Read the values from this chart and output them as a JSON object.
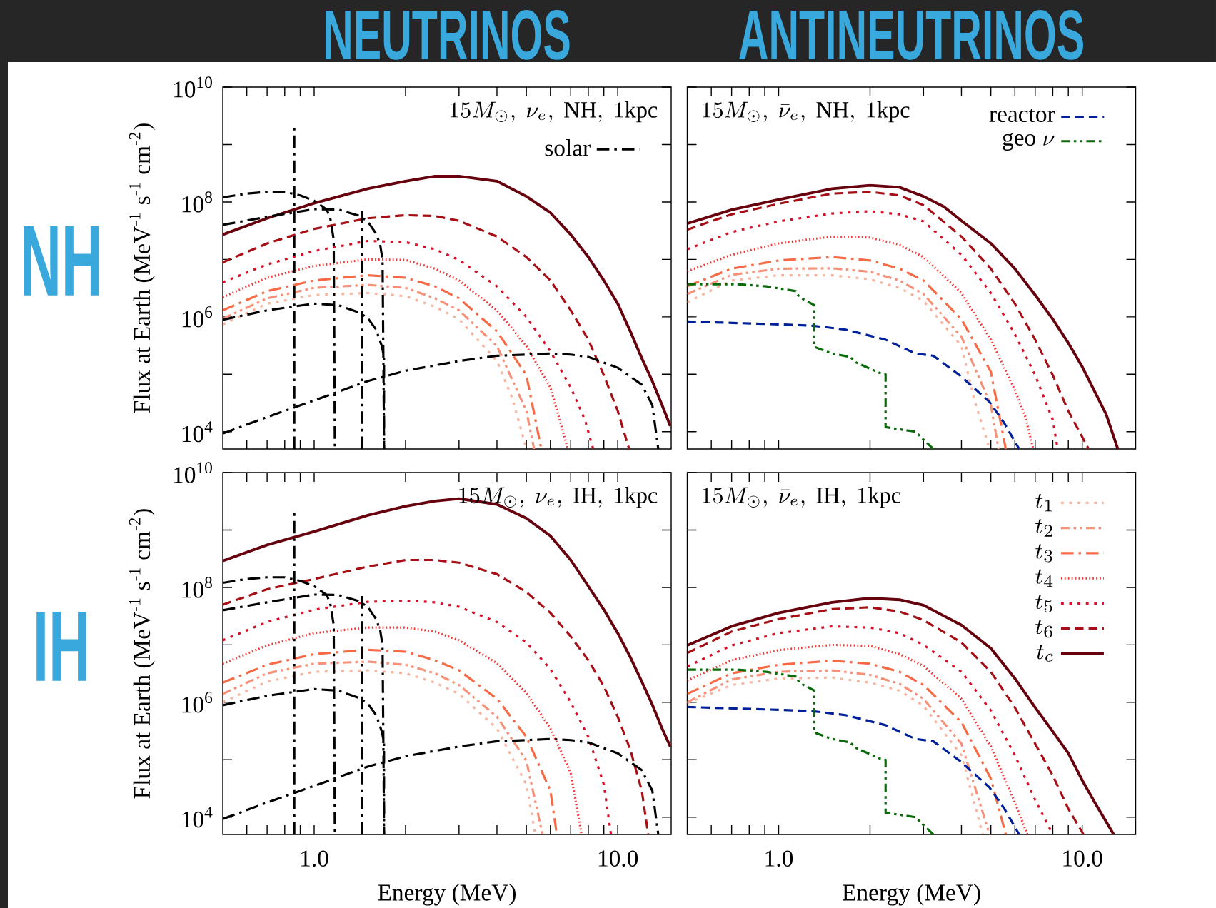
{
  "chart_data": [
    {
      "type": "line",
      "title": "NEUTRINOS",
      "subtitle": "15M_\\odot,\\ \\nu_e,\\ \\mathrm{NH},\\ 1\\mathrm{kpc}",
      "ylabel": "Flux at Earth (MeV$^{-1}$ s$^{-1}$ cm$^{-2}$)",
      "annotations": [
        "NH"
      ],
      "log": "xy",
      "legend": "top right",
      "tick_labels": "y",
      "xlim": [
        0.5,
        15
      ],
      "ylim": [
        5000.0,
        10000000000.0
      ],
      "xticks": [
        {
          "value": 0.6,
          "label": null
        },
        {
          "value": 0.7,
          "label": null
        },
        {
          "value": 0.8,
          "label": null
        },
        {
          "value": 0.9,
          "label": null
        },
        {
          "value": 1,
          "label": null
        },
        {
          "value": 2,
          "label": null
        },
        {
          "value": 3,
          "label": null
        },
        {
          "value": 4,
          "label": null
        },
        {
          "value": 5,
          "label": null
        },
        {
          "value": 6,
          "label": null
        },
        {
          "value": 7,
          "label": null
        },
        {
          "value": 8,
          "label": null
        },
        {
          "value": 9,
          "label": null
        },
        {
          "value": 10,
          "label": null
        }
      ],
      "yticks": [
        {
          "value": 10000.0,
          "label": "10$^{4}$"
        },
        {
          "value": 100000.0,
          "label": null
        },
        {
          "value": 1000000.0,
          "label": "10$^{6}$"
        },
        {
          "value": 10000000.0,
          "label": null
        },
        {
          "value": 100000000.0,
          "label": "10$^{8}$"
        },
        {
          "value": 1000000000.0,
          "label": null
        },
        {
          "value": 10000000000.0,
          "label": "10$^{10}$"
        }
      ],
      "series": [
        {
          "color": "#f7b49e",
          "line_style": "dotted",
          "x": [
            0.5,
            0.7,
            1,
            1.5,
            2,
            2.5,
            3,
            4,
            4.5,
            5.0
          ],
          "values": [
            740000.0,
            1700000.0,
            2400000.0,
            2600000.0,
            2300000.0,
            1500000.0,
            910000.0,
            170000.0,
            37000.0,
            5000.0
          ]
        },
        {
          "color": "#f8917a",
          "line_style": "dashdotdot",
          "x": [
            0.5,
            0.7,
            1,
            1.5,
            2,
            2.5,
            3,
            4,
            5,
            5.3
          ],
          "values": [
            930000.0,
            2100000.0,
            3200000.0,
            3600000.0,
            3200000.0,
            2100000.0,
            1300000.0,
            310000.0,
            23000.0,
            5000.0
          ]
        },
        {
          "color": "#f76a45",
          "line_style": "dashdot",
          "x": [
            0.5,
            0.7,
            1,
            1.5,
            2,
            2.5,
            3,
            4,
            5,
            5.6
          ],
          "values": [
            1300000.0,
            2800000.0,
            4300000.0,
            5300000.0,
            4800000.0,
            3400000.0,
            2100000.0,
            560000.0,
            96000.0,
            5000.0
          ]
        },
        {
          "color": "#f23a3a",
          "line_style": "densely dotted",
          "x": [
            0.5,
            0.7,
            1,
            1.5,
            2,
            2.5,
            3,
            4,
            5,
            6,
            6.85
          ],
          "values": [
            2200000.0,
            4800000.0,
            7700000.0,
            10000000.0,
            9800000.0,
            6900000.0,
            4300000.0,
            1300000.0,
            310000.0,
            59000.0,
            5000.0
          ]
        },
        {
          "color": "#d7102a",
          "line_style": "dotted",
          "x": [
            0.5,
            0.7,
            1,
            1.5,
            2,
            2.5,
            3,
            4,
            5,
            6,
            7,
            7.8,
            8.3
          ],
          "values": [
            4000000.0,
            8200000.0,
            14000000.0,
            21000000.0,
            20000000.0,
            15000000.0,
            9800000.0,
            3400000.0,
            1000000.0,
            250000.0,
            59000.0,
            16000.0,
            5000.0
          ]
        },
        {
          "color": "#a50f15",
          "line_style": "dashed",
          "x": [
            0.5,
            0.7,
            1,
            1.5,
            2,
            2.5,
            3,
            4,
            5,
            6,
            7,
            8,
            9,
            10,
            10.9
          ],
          "values": [
            8900000.0,
            19000000.0,
            34000000.0,
            52000000.0,
            59000000.0,
            57000000.0,
            47000000.0,
            25000000.0,
            11000000.0,
            4300000.0,
            1300000.0,
            400000.0,
            96000.0,
            23000.0,
            5000.0
          ]
        },
        {
          "color": "#67000d",
          "line_style": "solid",
          "x": [
            0.5,
            0.7,
            1,
            1.5,
            2,
            2.5,
            3,
            4,
            5,
            6,
            7,
            8,
            9,
            10,
            11,
            12,
            13,
            14,
            14.9
          ],
          "values": [
            27000000.0,
            52000000.0,
            95000000.0,
            170000000.0,
            230000000.0,
            280000000.0,
            280000000.0,
            230000000.0,
            125000000.0,
            65000000.0,
            27000000.0,
            11000000.0,
            4300000.0,
            1700000.0,
            560000.0,
            190000.0,
            76000.0,
            29000.0,
            12600.0
          ]
        },
        {
          "name": "\\mathrm{solar}",
          "color": "#000000",
          "line_style": "dashdot",
          "x": [
            0.5,
            0.6,
            0.7,
            0.8,
            0.9,
            1.0,
            1.1,
            1.13,
            1.16,
            1.17
          ],
          "values": [
            120000000.0,
            140000000.0,
            150000000.0,
            150000000.0,
            130000000.0,
            105000000.0,
            74000000.0,
            52000000.0,
            22000000.0,
            5000.0
          ]
        },
        {
          "color": "#000000",
          "line_style": "dashdot",
          "x": [
            0.5,
            0.7,
            1.0,
            1.2,
            1.4,
            1.5,
            1.6,
            1.65,
            1.68,
            1.7
          ],
          "values": [
            40000000.0,
            55000000.0,
            75000000.0,
            74000000.0,
            58000000.0,
            46000000.0,
            28000000.0,
            18000000.0,
            9800000.0,
            5000.0
          ]
        },
        {
          "color": "#000000",
          "line_style": "dashdot",
          "x": [
            0.5,
            0.7,
            1.0,
            1.2,
            1.4,
            1.5,
            1.6,
            1.67,
            1.7,
            1.7
          ],
          "values": [
            890000.0,
            1300000.0,
            1700000.0,
            1600000.0,
            1200000.0,
            960000.0,
            600000.0,
            310000.0,
            200000.0,
            5000.0
          ]
        },
        {
          "color": "#000000",
          "line_style": "dashdot",
          "x": [
            0.5,
            0.7,
            1.0,
            1.5,
            2,
            3,
            4,
            5,
            6,
            7,
            8,
            10,
            12,
            13,
            13.6
          ],
          "values": [
            9300.0,
            18000.0,
            35000.0,
            76000.0,
            115000.0,
            170000.0,
            210000.0,
            220000.0,
            230000.0,
            220000.0,
            200000.0,
            130000.0,
            66000.0,
            29000.0,
            5000.0
          ]
        },
        {
          "color": "#000000",
          "line_style": "dashdot",
          "x": [
            0.86,
            0.86
          ],
          "values": [
            5000.0,
            2100000000.0
          ]
        },
        {
          "color": "#000000",
          "line_style": "dashdot",
          "x": [
            1.44,
            1.44
          ],
          "values": [
            5000.0,
            75000000.0
          ]
        }
      ]
    },
    {
      "type": "line",
      "title": "ANTINEUTRINOS",
      "subtitle": "15M_\\odot,\\ \\bar{\\nu}_e,\\ \\mathrm{NH},\\ 1\\mathrm{kpc}",
      "log": "xy",
      "legend": "top right",
      "tick_labels": false,
      "xlim": [
        0.5,
        15
      ],
      "ylim": [
        5000.0,
        10000000000.0
      ],
      "xticks": [
        {
          "value": 0.6,
          "label": null
        },
        {
          "value": 0.7,
          "label": null
        },
        {
          "value": 0.8,
          "label": null
        },
        {
          "value": 0.9,
          "label": null
        },
        {
          "value": 1,
          "label": null
        },
        {
          "value": 2,
          "label": null
        },
        {
          "value": 3,
          "label": null
        },
        {
          "value": 4,
          "label": null
        },
        {
          "value": 5,
          "label": null
        },
        {
          "value": 6,
          "label": null
        },
        {
          "value": 7,
          "label": null
        },
        {
          "value": 8,
          "label": null
        },
        {
          "value": 9,
          "label": null
        },
        {
          "value": 10,
          "label": null
        }
      ],
      "yticks": [
        {
          "value": 10000.0,
          "label": null
        },
        {
          "value": 100000.0,
          "label": null
        },
        {
          "value": 1000000.0,
          "label": null
        },
        {
          "value": 10000000.0,
          "label": null
        },
        {
          "value": 100000000.0,
          "label": null
        },
        {
          "value": 1000000000.0,
          "label": null
        },
        {
          "value": 10000000000.0,
          "label": null
        }
      ],
      "series": [
        {
          "color": "#f7b49e",
          "line_style": "dotted",
          "x": [
            0.5,
            0.7,
            1,
            1.5,
            2,
            2.5,
            3,
            4,
            4.4,
            4.95
          ],
          "values": [
            1800000.0,
            4300000.0,
            5300000.0,
            5300000.0,
            4500000.0,
            3200000.0,
            1900000.0,
            310000.0,
            37000.0,
            5000.0
          ]
        },
        {
          "color": "#f8917a",
          "line_style": "dashdotdot",
          "x": [
            0.5,
            0.7,
            1,
            1.5,
            2,
            2.5,
            3,
            4,
            5,
            5.3
          ],
          "values": [
            2500000.0,
            5400000.0,
            6900000.0,
            7000000.0,
            6100000.0,
            4300000.0,
            2500000.0,
            450000.0,
            29000.0,
            5000.0
          ]
        },
        {
          "color": "#f76a45",
          "line_style": "dashdot",
          "x": [
            0.5,
            0.7,
            1,
            1.5,
            2,
            2.5,
            3,
            4,
            5,
            5.6
          ],
          "values": [
            3400000.0,
            6900000.0,
            9600000.0,
            11000000.0,
            9600000.0,
            6900000.0,
            4300000.0,
            910000.0,
            110000.0,
            5000.0
          ]
        },
        {
          "color": "#f23a3a",
          "line_style": "densely dotted",
          "x": [
            0.5,
            0.7,
            1,
            1.5,
            2,
            2.5,
            3,
            4,
            5,
            6,
            6.5,
            6.9
          ],
          "values": [
            6200000.0,
            12000000.0,
            19000000.0,
            25000000.0,
            24000000.0,
            18000000.0,
            11000000.0,
            2600000.0,
            400000.0,
            53000.0,
            18000.0,
            5000.0
          ]
        },
        {
          "color": "#d7102a",
          "line_style": "dotted",
          "x": [
            0.5,
            0.7,
            1,
            1.5,
            2,
            2.5,
            3,
            4,
            5,
            6,
            7,
            8,
            8.3
          ],
          "values": [
            15000000.0,
            30000000.0,
            46000000.0,
            63000000.0,
            69000000.0,
            61000000.0,
            46000000.0,
            12000000.0,
            2600000.0,
            500000.0,
            96000.0,
            16000.0,
            5000.0
          ]
        },
        {
          "color": "#a50f15",
          "line_style": "dashed",
          "x": [
            0.5,
            0.7,
            1,
            1.5,
            2,
            2.5,
            3,
            4,
            5,
            6,
            7,
            8,
            9,
            10.5
          ],
          "values": [
            33000000.0,
            61000000.0,
            93000000.0,
            140000000.0,
            150000000.0,
            130000000.0,
            88000000.0,
            25000000.0,
            6900000.0,
            1700000.0,
            400000.0,
            96000.0,
            23000.0,
            5000.0
          ]
        },
        {
          "color": "#67000d",
          "line_style": "solid",
          "x": [
            0.5,
            0.7,
            1,
            1.5,
            2,
            2.5,
            3,
            3.5,
            4,
            5,
            6,
            7,
            8,
            9,
            10,
            12,
            13.1
          ],
          "values": [
            42000000.0,
            73000000.0,
            110000000.0,
            170000000.0,
            195000000.0,
            180000000.0,
            125000000.0,
            83000000.0,
            47000000.0,
            19000000.0,
            6900000.0,
            2400000.0,
            910000.0,
            350000.0,
            135000.0,
            20000.0,
            5000.0
          ]
        },
        {
          "name": "\\mathrm{reactor}",
          "color": "#00209a",
          "line_style": "dashed",
          "x": [
            0.5,
            1.0,
            1.3,
            1.66,
            2.25,
            2.82,
            3.23,
            3.95,
            4.95,
            5.54,
            6.2
          ],
          "values": [
            830000.0,
            740000.0,
            700000.0,
            600000.0,
            400000.0,
            230000.0,
            210000.0,
            96000.0,
            33000.0,
            14000.0,
            5000.0
          ]
        },
        {
          "name": "\\mathrm{geo}\\ \\nu",
          "color": "#0a6a0a",
          "line_style": "dashdotdot",
          "x": [
            0.5,
            0.61,
            0.73,
            0.91,
            1.14,
            1.17,
            1.31,
            1.31,
            1.5,
            1.72,
            1.8,
            2.2,
            2.25,
            2.25,
            2.82,
            3.23
          ],
          "values": [
            3700000.0,
            3700000.0,
            3700000.0,
            3400000.0,
            2800000.0,
            2200000.0,
            1600000.0,
            300000.0,
            230000.0,
            200000.0,
            160000.0,
            100000.0,
            100000.0,
            12000.0,
            10000.0,
            5000.0
          ]
        }
      ]
    },
    {
      "type": "line",
      "subtitle": "15M_\\odot,\\ \\nu_e,\\ \\mathrm{IH},\\ 1\\mathrm{kpc}",
      "xlabel": "Energy (MeV)",
      "ylabel": "Flux at Earth (MeV$^{-1}$ s$^{-1}$ cm$^{-2}$)",
      "annotations": [
        "IH"
      ],
      "log": "xy",
      "xlim": [
        0.5,
        15
      ],
      "ylim": [
        5000.0,
        10000000000.0
      ],
      "xticks": [
        {
          "value": 0.6,
          "label": null
        },
        {
          "value": 0.7,
          "label": null
        },
        {
          "value": 0.8,
          "label": null
        },
        {
          "value": 0.9,
          "label": null
        },
        {
          "value": 1,
          "label": "1.0"
        },
        {
          "value": 2,
          "label": null
        },
        {
          "value": 3,
          "label": null
        },
        {
          "value": 4,
          "label": null
        },
        {
          "value": 5,
          "label": null
        },
        {
          "value": 6,
          "label": null
        },
        {
          "value": 7,
          "label": null
        },
        {
          "value": 8,
          "label": null
        },
        {
          "value": 9,
          "label": null
        },
        {
          "value": 10,
          "label": "10.0"
        }
      ],
      "yticks": [
        {
          "value": 10000.0,
          "label": "10$^{4}$"
        },
        {
          "value": 100000.0,
          "label": null
        },
        {
          "value": 1000000.0,
          "label": "10$^{6}$"
        },
        {
          "value": 10000000.0,
          "label": null
        },
        {
          "value": 100000000.0,
          "label": "10$^{8}$"
        },
        {
          "value": 1000000000.0,
          "label": null
        },
        {
          "value": 10000000000.0,
          "label": "10$^{10}$"
        }
      ],
      "series": [
        {
          "color": "#f7b49e",
          "line_style": "dotted",
          "x": [
            0.5,
            0.7,
            1,
            1.5,
            2,
            2.5,
            3,
            4,
            5,
            5.35
          ],
          "values": [
            1000000.0,
            2300000.0,
            3400000.0,
            3600000.0,
            3200000.0,
            2200000.0,
            1400000.0,
            350000.0,
            37000.0,
            5000.0
          ]
        },
        {
          "color": "#f8917a",
          "line_style": "dashdotdot",
          "x": [
            0.5,
            0.7,
            1,
            1.5,
            2,
            2.5,
            3,
            4,
            5,
            5.65
          ],
          "values": [
            1400000.0,
            3200000.0,
            4700000.0,
            5100000.0,
            4500000.0,
            3200000.0,
            2000000.0,
            560000.0,
            96000.0,
            5000.0
          ]
        },
        {
          "color": "#f76a45",
          "line_style": "dashdot",
          "x": [
            0.5,
            0.7,
            1,
            1.5,
            2,
            2.5,
            3,
            4,
            5,
            6,
            6.3
          ],
          "values": [
            2200000.0,
            4500000.0,
            6900000.0,
            8200000.0,
            7600000.0,
            5400000.0,
            3600000.0,
            1150000.0,
            250000.0,
            29000.0,
            5000.0
          ]
        },
        {
          "color": "#f23a3a",
          "line_style": "densely dotted",
          "x": [
            0.5,
            0.7,
            1,
            1.5,
            2,
            2.5,
            3,
            4,
            5,
            6,
            7,
            7.6
          ],
          "values": [
            4700000.0,
            9800000.0,
            16000000.0,
            20000000.0,
            20000000.0,
            17000000.0,
            12000000.0,
            4800000.0,
            1450000.0,
            350000.0,
            59000.0,
            5000.0
          ]
        },
        {
          "color": "#d7102a",
          "line_style": "dotted",
          "x": [
            0.5,
            0.7,
            1,
            1.5,
            2,
            2.5,
            3,
            4,
            5,
            6,
            7,
            8,
            9,
            9.5
          ],
          "values": [
            12000000.0,
            25000000.0,
            41000000.0,
            56000000.0,
            59000000.0,
            55000000.0,
            46000000.0,
            25000000.0,
            11000000.0,
            3800000.0,
            1000000.0,
            250000.0,
            37000.0,
            5000.0
          ]
        },
        {
          "color": "#a50f15",
          "line_style": "dashed",
          "x": [
            0.5,
            0.7,
            1,
            1.5,
            2,
            2.5,
            3,
            4,
            5,
            6,
            7,
            8,
            9,
            10,
            11,
            12,
            12.6
          ],
          "values": [
            50000000.0,
            93000000.0,
            140000000.0,
            230000000.0,
            300000000.0,
            300000000.0,
            270000000.0,
            170000000.0,
            83000000.0,
            36000000.0,
            14000000.0,
            5400000.0,
            1900000.0,
            560000.0,
            150000.0,
            29000.0,
            5000.0
          ]
        },
        {
          "color": "#67000d",
          "line_style": "solid",
          "x": [
            0.5,
            0.7,
            1,
            1.5,
            2,
            2.5,
            3,
            4,
            5,
            6,
            7,
            8,
            9,
            10,
            11,
            12,
            13,
            14,
            14.9
          ],
          "values": [
            290000000.0,
            550000000.0,
            940000000.0,
            1800000000.0,
            2600000000.0,
            3200000000.0,
            3500000000.0,
            2800000000.0,
            1600000000.0,
            790000000.0,
            300000000.0,
            105000000.0,
            41000000.0,
            16000000.0,
            6100000.0,
            2300000.0,
            910000.0,
            350000.0,
            170000.0
          ]
        },
        {
          "color": "#000000",
          "line_style": "dashdot",
          "x": [
            0.5,
            0.6,
            0.7,
            0.8,
            0.9,
            1.0,
            1.1,
            1.13,
            1.16,
            1.17
          ],
          "values": [
            120000000.0,
            140000000.0,
            150000000.0,
            150000000.0,
            130000000.0,
            105000000.0,
            74000000.0,
            52000000.0,
            22000000.0,
            5000.0
          ]
        },
        {
          "color": "#000000",
          "line_style": "dashdot",
          "x": [
            0.5,
            0.7,
            1.0,
            1.2,
            1.4,
            1.5,
            1.6,
            1.65,
            1.68,
            1.7
          ],
          "values": [
            40000000.0,
            55000000.0,
            75000000.0,
            74000000.0,
            58000000.0,
            46000000.0,
            28000000.0,
            18000000.0,
            9800000.0,
            5000.0
          ]
        },
        {
          "color": "#000000",
          "line_style": "dashdot",
          "x": [
            0.5,
            0.7,
            1.0,
            1.2,
            1.4,
            1.5,
            1.6,
            1.67,
            1.7,
            1.7
          ],
          "values": [
            890000.0,
            1300000.0,
            1700000.0,
            1600000.0,
            1200000.0,
            960000.0,
            600000.0,
            310000.0,
            200000.0,
            5000.0
          ]
        },
        {
          "color": "#000000",
          "line_style": "dashdot",
          "x": [
            0.5,
            0.7,
            1.0,
            1.5,
            2,
            3,
            4,
            5,
            6,
            7,
            8,
            10,
            12,
            13,
            13.6
          ],
          "values": [
            9300.0,
            18000.0,
            35000.0,
            76000.0,
            115000.0,
            170000.0,
            210000.0,
            220000.0,
            230000.0,
            220000.0,
            200000.0,
            130000.0,
            66000.0,
            29000.0,
            5000.0
          ]
        },
        {
          "color": "#000000",
          "line_style": "dashdot",
          "x": [
            0.86,
            0.86
          ],
          "values": [
            5000.0,
            2100000000.0
          ]
        },
        {
          "color": "#000000",
          "line_style": "dashdot",
          "x": [
            1.44,
            1.44
          ],
          "values": [
            5000.0,
            75000000.0
          ]
        }
      ]
    },
    {
      "type": "line",
      "subtitle": "15M_\\odot,\\ \\bar{\\nu}_e,\\ \\mathrm{IH},\\ 1\\mathrm{kpc}",
      "xlabel": "Energy (MeV)",
      "log": "xy",
      "legend": "top right",
      "tick_labels": "x",
      "xlim": [
        0.5,
        15
      ],
      "ylim": [
        5000.0,
        10000000000.0
      ],
      "xticks": [
        {
          "value": 0.6,
          "label": null
        },
        {
          "value": 0.7,
          "label": null
        },
        {
          "value": 0.8,
          "label": null
        },
        {
          "value": 0.9,
          "label": null
        },
        {
          "value": 1,
          "label": "1.0"
        },
        {
          "value": 2,
          "label": null
        },
        {
          "value": 3,
          "label": null
        },
        {
          "value": 4,
          "label": null
        },
        {
          "value": 5,
          "label": null
        },
        {
          "value": 6,
          "label": null
        },
        {
          "value": 7,
          "label": null
        },
        {
          "value": 8,
          "label": null
        },
        {
          "value": 9,
          "label": null
        },
        {
          "value": 10,
          "label": "10.0"
        }
      ],
      "yticks": [
        {
          "value": 10000.0,
          "label": null
        },
        {
          "value": 100000.0,
          "label": null
        },
        {
          "value": 1000000.0,
          "label": null
        },
        {
          "value": 10000000.0,
          "label": null
        },
        {
          "value": 100000000.0,
          "label": null
        },
        {
          "value": 1000000000.0,
          "label": null
        },
        {
          "value": 10000000000.0,
          "label": null
        }
      ],
      "series": [
        {
          "name": "t_1",
          "color": "#f7b49e",
          "line_style": "dotted",
          "x": [
            0.5,
            0.7,
            1,
            1.5,
            2,
            2.5,
            3,
            4,
            4.7
          ],
          "values": [
            960000.0,
            2000000.0,
            2600000.0,
            2700000.0,
            2200000.0,
            1600000.0,
            870000.0,
            120000.0,
            5000.0
          ]
        },
        {
          "name": "t_2",
          "color": "#f8917a",
          "line_style": "dashdotdot",
          "x": [
            0.5,
            0.7,
            1,
            1.5,
            2,
            2.5,
            3,
            4,
            4.95
          ],
          "values": [
            1000000.0,
            2500000.0,
            3400000.0,
            3600000.0,
            3000000.0,
            2100000.0,
            1150000.0,
            190000.0,
            5000.0
          ]
        },
        {
          "name": "t_3",
          "color": "#f76a45",
          "line_style": "dashdot",
          "x": [
            0.5,
            0.7,
            1,
            1.5,
            2,
            2.5,
            3,
            4,
            5,
            5.6
          ],
          "values": [
            1400000.0,
            3200000.0,
            4500000.0,
            5300000.0,
            4700000.0,
            3400000.0,
            2000000.0,
            450000.0,
            47000.0,
            5000.0
          ]
        },
        {
          "name": "t_4",
          "color": "#f23a3a",
          "line_style": "densely dotted",
          "x": [
            0.5,
            0.7,
            1,
            1.5,
            2,
            2.5,
            3,
            4,
            5,
            6,
            6.6
          ],
          "values": [
            2400000.0,
            5400000.0,
            8100000.0,
            10000000.0,
            9600000.0,
            6900000.0,
            4300000.0,
            1150000.0,
            170000.0,
            18000.0,
            5000.0
          ]
        },
        {
          "name": "t_5",
          "color": "#d7102a",
          "line_style": "dotted",
          "x": [
            0.5,
            0.7,
            1,
            1.5,
            2,
            2.5,
            3,
            4,
            5,
            6,
            7,
            8
          ],
          "values": [
            4200000.0,
            9800000.0,
            16000000.0,
            21000000.0,
            20000000.0,
            16000000.0,
            10000000.0,
            3400000.0,
            720000.0,
            120000.0,
            20000.0,
            5000.0
          ]
        },
        {
          "name": "t_6",
          "color": "#a50f15",
          "line_style": "dashed",
          "x": [
            0.5,
            0.7,
            1,
            1.5,
            2,
            2.5,
            3,
            4,
            5,
            6,
            7,
            8,
            9,
            10.1
          ],
          "values": [
            7200000.0,
            17000000.0,
            28000000.0,
            42000000.0,
            45000000.0,
            38000000.0,
            27000000.0,
            11000000.0,
            3400000.0,
            810000.0,
            190000.0,
            53000.0,
            14000.0,
            5000.0
          ]
        },
        {
          "name": "t_c",
          "color": "#67000d",
          "line_style": "solid",
          "x": [
            0.5,
            0.7,
            1,
            1.5,
            2,
            2.5,
            3,
            4,
            5,
            6,
            7,
            8,
            9,
            10,
            11,
            12.7
          ],
          "values": [
            9800000.0,
            21000000.0,
            36000000.0,
            55000000.0,
            65000000.0,
            61000000.0,
            49000000.0,
            22000000.0,
            8700000.0,
            2600000.0,
            810000.0,
            310000.0,
            130000.0,
            44000.0,
            18000.0,
            5000.0
          ]
        },
        {
          "color": "#00209a",
          "line_style": "dashed",
          "x": [
            0.5,
            1.0,
            1.3,
            1.66,
            2.25,
            2.82,
            3.23,
            3.95,
            4.95,
            5.54,
            6.2
          ],
          "values": [
            830000.0,
            740000.0,
            700000.0,
            600000.0,
            400000.0,
            230000.0,
            210000.0,
            96000.0,
            33000.0,
            14000.0,
            5000.0
          ]
        },
        {
          "color": "#0a6a0a",
          "line_style": "dashdotdot",
          "x": [
            0.5,
            0.61,
            0.73,
            0.91,
            1.14,
            1.17,
            1.31,
            1.31,
            1.5,
            1.72,
            1.8,
            2.2,
            2.25,
            2.25,
            2.82,
            3.23
          ],
          "values": [
            3700000.0,
            3700000.0,
            3700000.0,
            3400000.0,
            2800000.0,
            2200000.0,
            1600000.0,
            300000.0,
            230000.0,
            200000.0,
            160000.0,
            100000.0,
            100000.0,
            12000.0,
            10000.0,
            5000.0
          ]
        }
      ]
    }
  ]
}
